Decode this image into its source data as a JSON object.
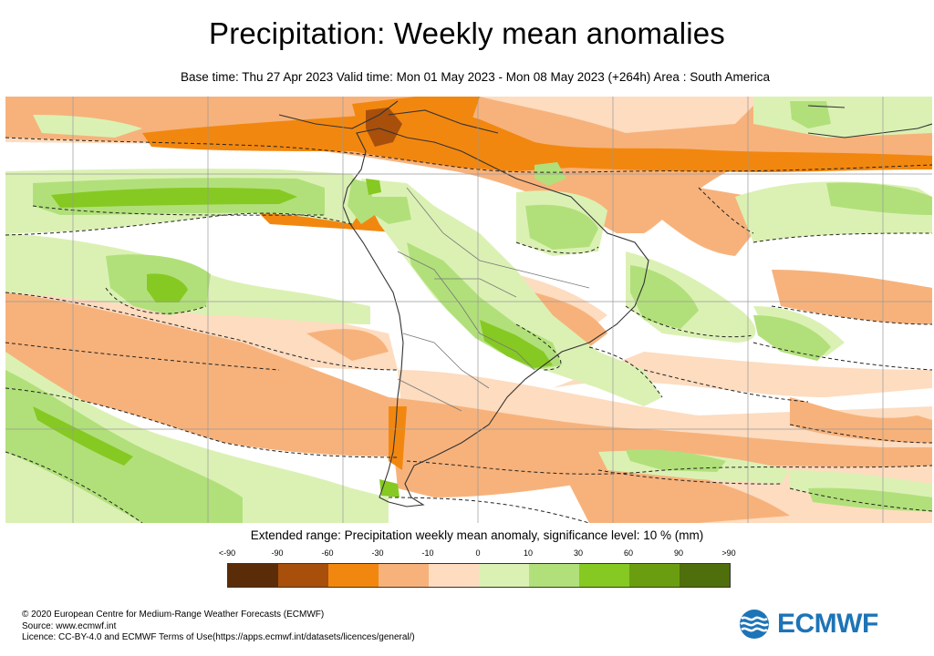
{
  "header": {
    "title": "Precipitation: Weekly mean anomalies",
    "subtitle": "Base time: Thu 27 Apr 2023 Valid time: Mon 01 May 2023 - Mon 08 May 2023 (+264h) Area : South America"
  },
  "legend": {
    "title": "Extended range: Precipitation weekly mean anomaly, significance level: 10 % (mm)",
    "labels": [
      "<-90",
      "-90",
      "-60",
      "-30",
      "-10",
      "0",
      "10",
      "30",
      "60",
      "90",
      ">90"
    ],
    "colors": [
      "#5a2d08",
      "#a84f0c",
      "#f2870f",
      "#f7b27b",
      "#fddcc0",
      "#ffffff",
      "#dbf1b4",
      "#b1e07a",
      "#86c922",
      "#6a9e10",
      "#4f6e0c"
    ]
  },
  "footer": {
    "line1": "© 2020 European Centre for Medium-Range Weather Forecasts (ECMWF)",
    "line2": "Source: www.ecmwf.int",
    "line3": "Licence: CC-BY-4.0 and ECMWF Terms of Use(https://apps.ecmwf.int/datasets/licences/general/)"
  },
  "logo": {
    "text": "ECMWF",
    "color": "#1d74b6"
  }
}
